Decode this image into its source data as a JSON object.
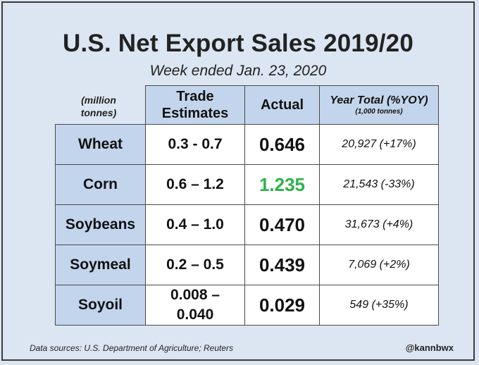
{
  "header": {
    "title": "U.S. Net Export Sales 2019/20",
    "subtitle": "Week ended Jan. 23, 2020"
  },
  "chart_data": {
    "type": "table",
    "units_label": "(million tonnes)",
    "columns": {
      "trade": "Trade Estimates",
      "actual": "Actual",
      "year": "Year Total (%YOY)",
      "year_sub": "(1,000 tonnes)"
    },
    "rows": [
      {
        "commodity": "Wheat",
        "estimate": "0.3 - 0.7",
        "actual": "0.646",
        "year_total": "20,927 (+17%)",
        "highlight": false
      },
      {
        "commodity": "Corn",
        "estimate": "0.6 – 1.2",
        "actual": "1.235",
        "year_total": "21,543 (-33%)",
        "highlight": true
      },
      {
        "commodity": "Soybeans",
        "estimate": "0.4 – 1.0",
        "actual": "0.470",
        "year_total": "31,673 (+4%)",
        "highlight": false
      },
      {
        "commodity": "Soymeal",
        "estimate": "0.2 – 0.5",
        "actual": "0.439",
        "year_total": "7,069 (+2%)",
        "highlight": false
      },
      {
        "commodity": "Soyoil",
        "estimate": "0.008 – 0.040",
        "actual": "0.029",
        "year_total": "549 (+35%)",
        "highlight": false
      }
    ]
  },
  "colors": {
    "background": "#dce6f2",
    "header_fill": "#c3d5ec",
    "highlight": "#2db34a"
  },
  "footer": {
    "source": "Data sources: U.S. Department of Agriculture; Reuters",
    "handle": "@kannbwx"
  }
}
